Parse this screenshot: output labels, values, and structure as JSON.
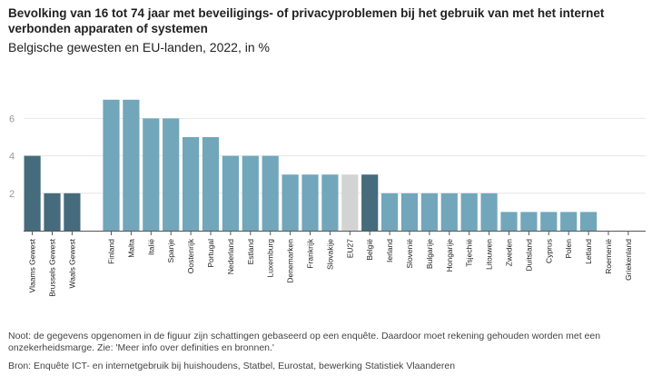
{
  "title": "Bevolking van 16 tot 74 jaar met beveiligings- of privacyproblemen bij het gebruik van met het internet verbonden apparaten of systemen",
  "subtitle": "Belgische gewesten en EU-landen, 2022, in %",
  "footnote": "Noot: de gegevens opgenomen in de figuur zijn schattingen gebaseerd op een enquête. Daardoor moet rekening gehouden worden met een onzekerheidsmarge. Zie: 'Meer info over definities en bronnen.'",
  "source": "Bron: Enquête ICT- en internetgebruik bij huishoudens, Statbel, Eurostat, bewerking Statistiek Vlaanderen",
  "colors": {
    "region": "#456b7c",
    "country": "#72a6bb",
    "eu27": "#d3d3d3",
    "belgium": "#456b7c",
    "axis": "#555555",
    "grid": "#e6e6e6",
    "tick_label": "#999999"
  },
  "chart_data": {
    "type": "bar",
    "ylim": [
      0,
      8
    ],
    "yticks": [
      2,
      4,
      6
    ],
    "grid": true,
    "categories": [
      "Vlaams Gewest",
      "Brussels Gewest",
      "Waals Gewest",
      "Finland",
      "Malta",
      "Italië",
      "Spanje",
      "Oostenrijk",
      "Portugal",
      "Nederland",
      "Estland",
      "Luxemburg",
      "Denemarken",
      "Frankrijk",
      "Slovakije",
      "EU27",
      "België",
      "Ierland",
      "Slovenië",
      "Bulgarije",
      "Hongarije",
      "Tsjechië",
      "Litouwen",
      "Zweden",
      "Duitsland",
      "Cyprus",
      "Polen",
      "Letland",
      "Roemenië",
      "Griekenland"
    ],
    "values": [
      4,
      2,
      2,
      7,
      7,
      6,
      6,
      5,
      5,
      4,
      4,
      4,
      3,
      3,
      3,
      3,
      3,
      2,
      2,
      2,
      2,
      2,
      2,
      1,
      1,
      1,
      1,
      1,
      0,
      0
    ],
    "groups": [
      "region",
      "region",
      "region",
      "country",
      "country",
      "country",
      "country",
      "country",
      "country",
      "country",
      "country",
      "country",
      "country",
      "country",
      "country",
      "eu27",
      "belgium",
      "country",
      "country",
      "country",
      "country",
      "country",
      "country",
      "country",
      "country",
      "country",
      "country",
      "country",
      "country",
      "country"
    ]
  }
}
